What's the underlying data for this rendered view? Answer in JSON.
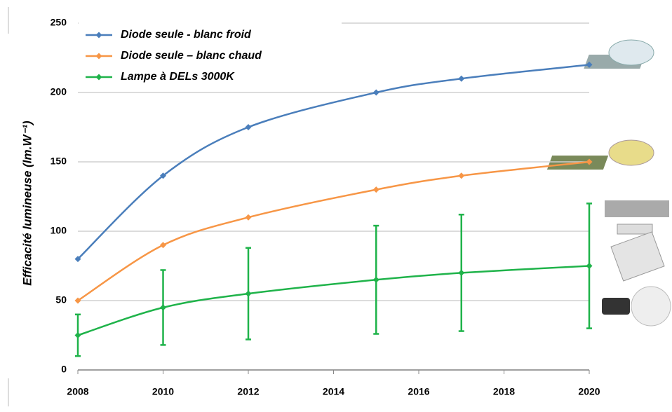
{
  "chart_data": {
    "type": "line",
    "y_label": "Efficacité lumineuse  (lm.W⁻¹)",
    "x": [
      2008,
      2010,
      2012,
      2015,
      2017,
      2020
    ],
    "series": [
      {
        "name": "Diode seule - blanc froid",
        "color": "#4a7ebb",
        "values": [
          80,
          140,
          175,
          200,
          210,
          220
        ]
      },
      {
        "name": "Diode seule – blanc chaud",
        "color": "#f79646",
        "values": [
          50,
          90,
          110,
          130,
          140,
          150
        ]
      },
      {
        "name": "Lampe à DELs 3000K",
        "color": "#1fb34a",
        "values": [
          25,
          45,
          55,
          65,
          70,
          75
        ],
        "errors": [
          15,
          27,
          33,
          39,
          42,
          45
        ]
      }
    ],
    "xlim": [
      2008,
      2020
    ],
    "xticks": [
      2008,
      2010,
      2012,
      2014,
      2016,
      2018,
      2020
    ],
    "ylim": [
      0,
      250
    ],
    "yticks": [
      0,
      50,
      100,
      150,
      200,
      250
    ],
    "grid": true,
    "legend": "upper left"
  }
}
